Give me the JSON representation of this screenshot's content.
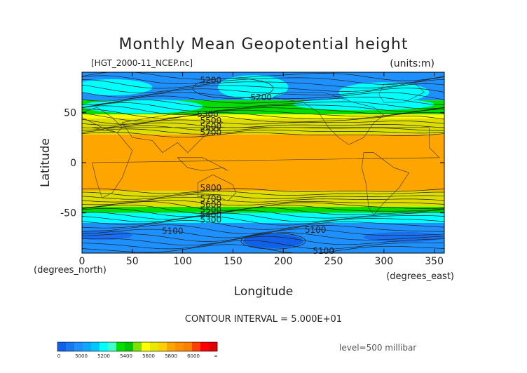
{
  "chart_data": {
    "type": "heatmap",
    "title": "Monthly Mean Geopotential height",
    "subtitle_left": "[HGT_2000-11_NCEP.nc]",
    "subtitle_right": "(units:m)",
    "xlabel": "Longitude",
    "ylabel": "Latitude",
    "x_unit_label": "(degrees_east)",
    "y_unit_label": "(degrees_north)",
    "xlim": [
      0,
      360
    ],
    "ylim": [
      -90,
      90
    ],
    "x_ticks": [
      {
        "value": 0,
        "label": "0"
      },
      {
        "value": 50,
        "label": "50"
      },
      {
        "value": 100,
        "label": "100"
      },
      {
        "value": 150,
        "label": "150"
      },
      {
        "value": 200,
        "label": "200"
      },
      {
        "value": 250,
        "label": "250"
      },
      {
        "value": 300,
        "label": "300"
      },
      {
        "value": 350,
        "label": "350"
      }
    ],
    "y_ticks": [
      {
        "value": 50,
        "label": "50"
      },
      {
        "value": 0,
        "label": "0"
      },
      {
        "value": -50,
        "label": "-50"
      }
    ],
    "bands": [
      {
        "lat_top": 90,
        "lat_bottom": 62,
        "level": "5000-5200",
        "color": "#1e90ff"
      },
      {
        "lat_top": 62,
        "lat_bottom": 48,
        "level": "5400-5600",
        "color": "#00dd00"
      },
      {
        "lat_top": 48,
        "lat_bottom": 44,
        "level": "5600-5800",
        "color": "#ffff00"
      },
      {
        "lat_top": 44,
        "lat_bottom": 28,
        "level": "5600-5800",
        "color": "#dddd00"
      },
      {
        "lat_top": 28,
        "lat_bottom": -28,
        "level": "5800-6000",
        "color": "#ffa500"
      },
      {
        "lat_top": -28,
        "lat_bottom": -44,
        "level": "5600-5800",
        "color": "#dddd00"
      },
      {
        "lat_top": -44,
        "lat_bottom": -50,
        "level": "5400-5600",
        "color": "#00dd00"
      },
      {
        "lat_top": -50,
        "lat_bottom": -60,
        "level": "5200-5400",
        "color": "#00ffff"
      },
      {
        "lat_top": -60,
        "lat_bottom": -90,
        "level": "5000-5200",
        "color": "#1e90ff"
      }
    ],
    "contour_labels": [
      {
        "lon": 128,
        "lat": 82,
        "text": "5200"
      },
      {
        "lon": 178,
        "lat": 65,
        "text": "5200"
      },
      {
        "lon": 125,
        "lat": 48,
        "text": "5300"
      },
      {
        "lon": 128,
        "lat": 42,
        "text": "5500"
      },
      {
        "lon": 128,
        "lat": 36,
        "text": "5600"
      },
      {
        "lon": 128,
        "lat": 30,
        "text": "5700"
      },
      {
        "lon": 128,
        "lat": -25,
        "text": "5800"
      },
      {
        "lon": 128,
        "lat": -36,
        "text": "5700"
      },
      {
        "lon": 128,
        "lat": -42,
        "text": "5600"
      },
      {
        "lon": 128,
        "lat": -47,
        "text": "5500"
      },
      {
        "lon": 128,
        "lat": -52,
        "text": "5400"
      },
      {
        "lon": 128,
        "lat": -57,
        "text": "5300"
      },
      {
        "lon": 90,
        "lat": -68,
        "text": "5100"
      },
      {
        "lon": 232,
        "lat": -67,
        "text": "5100"
      },
      {
        "lon": 240,
        "lat": -88,
        "text": "5100"
      }
    ],
    "contour_interval": "CONTOUR INTERVAL = 5.000E+01",
    "level_label": "level=500 millibar",
    "colorbar": {
      "labels": [
        "0",
        "5000",
        "5200",
        "5400",
        "5600",
        "5800",
        "6000",
        "∞"
      ],
      "colors": [
        "#1060e8",
        "#1878f0",
        "#1e90ff",
        "#10a8ff",
        "#00c8ff",
        "#00ffff",
        "#40ffc8",
        "#00e000",
        "#00c800",
        "#80e000",
        "#ffff00",
        "#e8e800",
        "#ffd000",
        "#ffa500",
        "#ff9000",
        "#ff8000",
        "#ff4000",
        "#ff0000",
        "#e00000"
      ]
    }
  }
}
